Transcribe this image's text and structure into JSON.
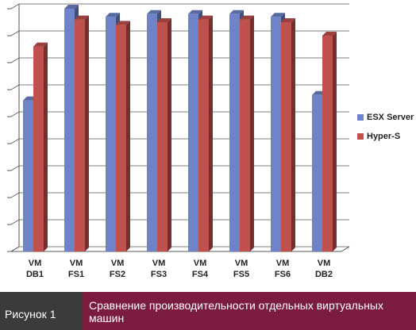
{
  "chart_data": {
    "type": "bar",
    "categories": [
      "VM\nDB1",
      "VM\nFS1",
      "VM\nFS2",
      "VM\nFS3",
      "VM\nFS4",
      "VM\nFS5",
      "VM\nFS6",
      "VM\nDB2"
    ],
    "series": [
      {
        "name": "ESX Server",
        "color": "#6f84c8",
        "values": [
          5.6,
          9.0,
          8.7,
          8.8,
          8.8,
          8.8,
          8.7,
          5.8
        ]
      },
      {
        "name": "Hyper-S",
        "color": "#c0504d",
        "values": [
          7.6,
          8.6,
          8.4,
          8.5,
          8.6,
          8.6,
          8.5,
          8.0
        ]
      }
    ],
    "ylim": [
      0,
      9
    ],
    "yticks": [
      0,
      1,
      2,
      3,
      4,
      5,
      6,
      7,
      8,
      9
    ],
    "grid": true,
    "legend": "right"
  },
  "footer": {
    "figure": "Рисунок 1",
    "caption": "Сравнение производительности отдельных виртуальных машин"
  }
}
